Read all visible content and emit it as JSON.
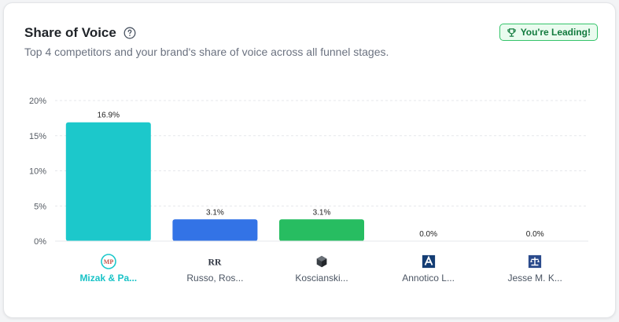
{
  "header": {
    "title": "Share of Voice",
    "subtitle": "Top 4 competitors and your brand's share of voice across all funnel stages.",
    "badge": "You're Leading!"
  },
  "chart_data": {
    "type": "bar",
    "categories": [
      "Mizak & Pa...",
      "Russo, Ros...",
      "Koscianski...",
      "Annotico L...",
      "Jesse M. K..."
    ],
    "values": [
      16.9,
      3.1,
      3.1,
      0.0,
      0.0
    ],
    "data_labels": [
      "16.9%",
      "3.1%",
      "3.1%",
      "0.0%",
      "0.0%"
    ],
    "colors": [
      "#1cc8cb",
      "#3373e6",
      "#27bd61",
      "#9aa3ad",
      "#9aa3ad"
    ],
    "icons": [
      "mp-logo-icon",
      "rr-logo-icon",
      "cube-logo-icon",
      "a-logo-icon",
      "scale-logo-icon"
    ],
    "yticks": [
      "0%",
      "5%",
      "10%",
      "15%",
      "20%"
    ],
    "ytick_values": [
      0,
      5,
      10,
      15,
      20
    ],
    "ylim": [
      0,
      20
    ],
    "highlight_index": 0,
    "grid": true
  }
}
